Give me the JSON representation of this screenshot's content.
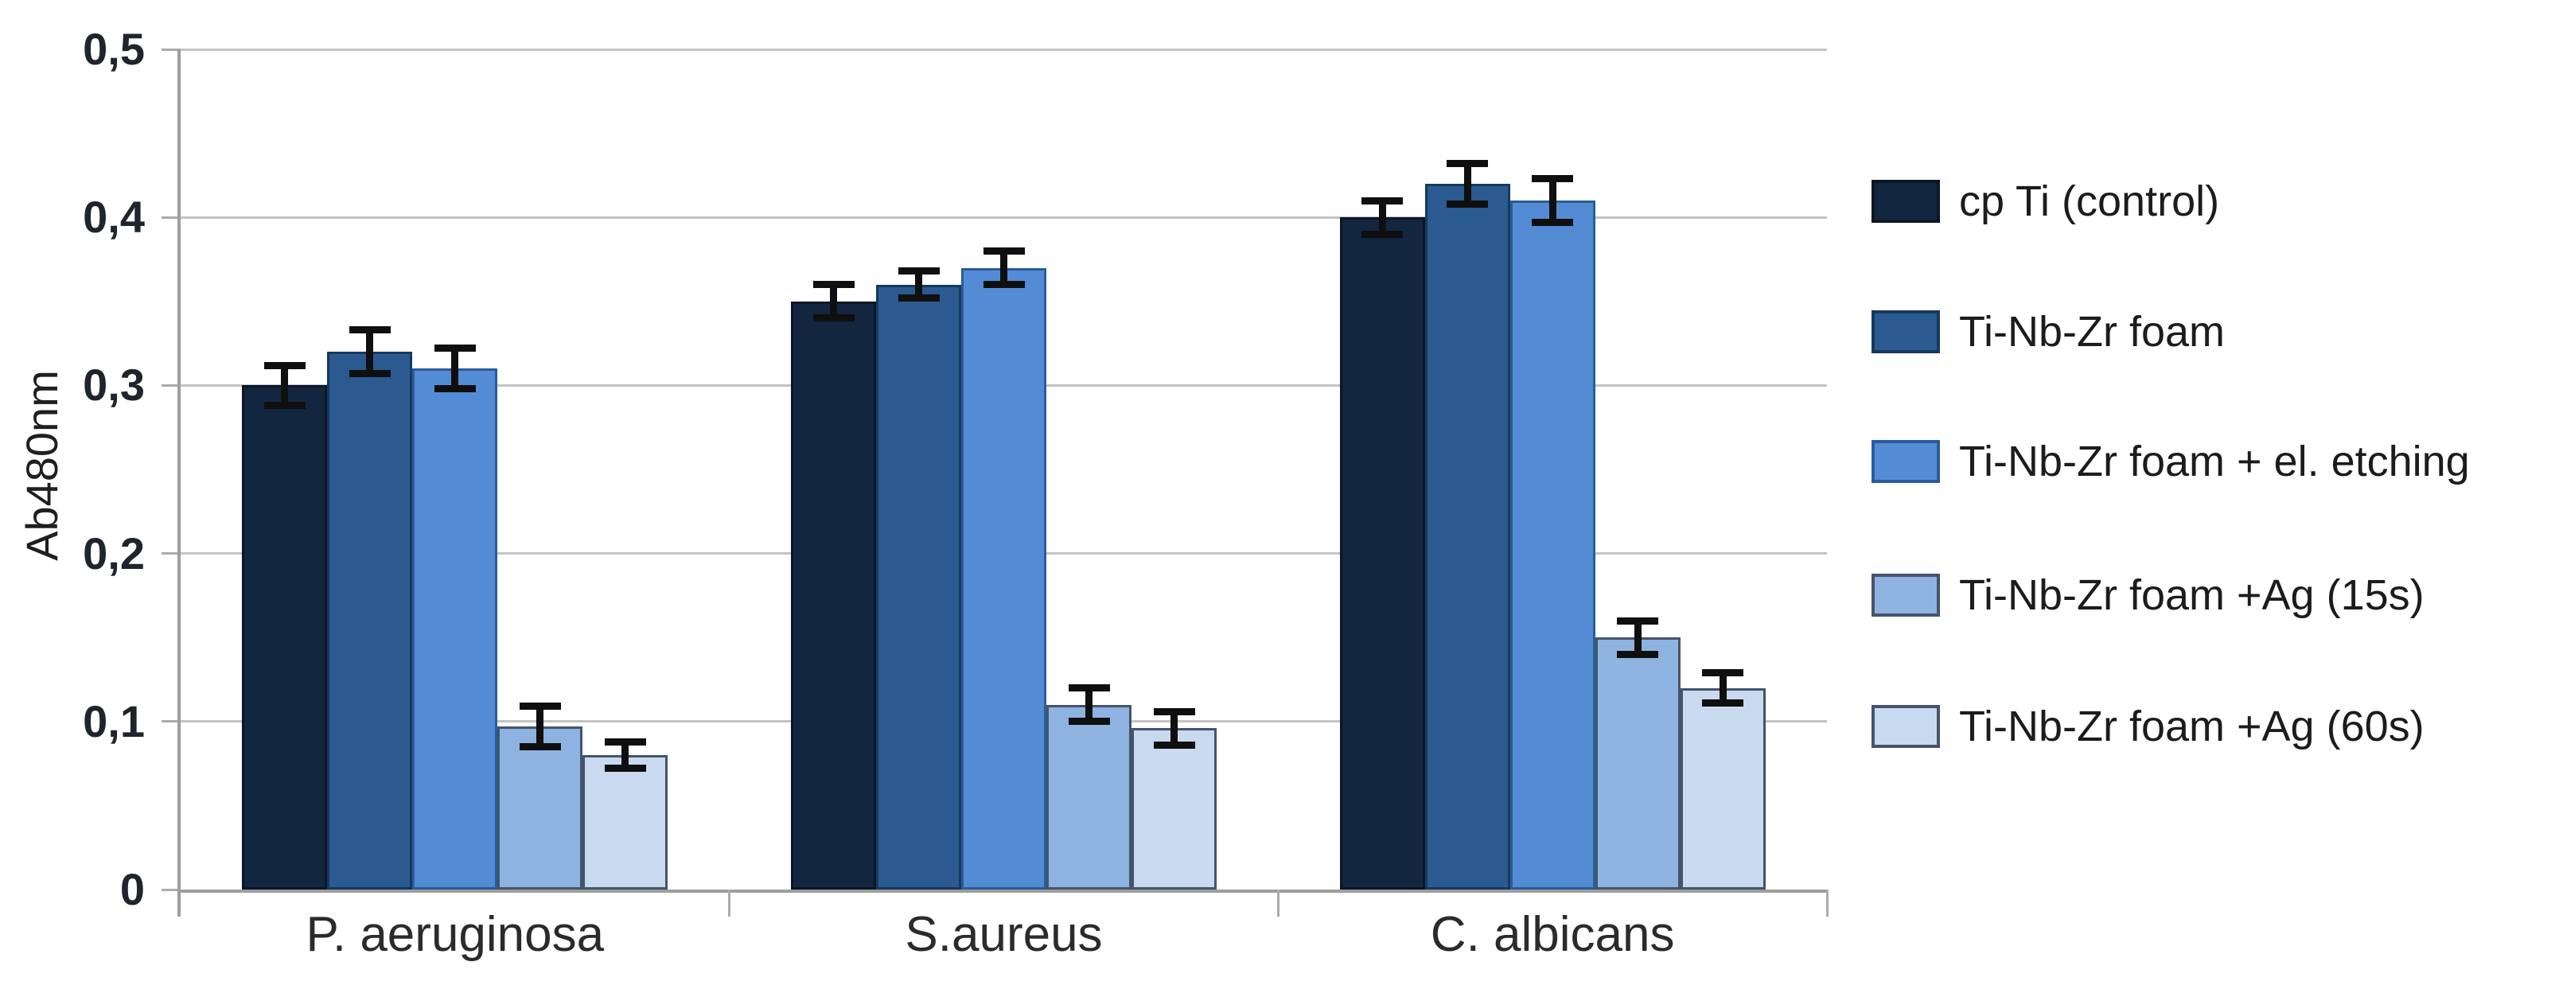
{
  "chart_data": {
    "type": "bar",
    "title": "",
    "ylabel": "Ab480nm",
    "xlabel": "",
    "categories": [
      "P. aeruginosa",
      "S.aureus",
      "C. albicans"
    ],
    "series": [
      {
        "name": "cp Ti (control)",
        "color": "#132640",
        "edge": "#0b1727",
        "values": [
          0.3,
          0.35,
          0.4
        ],
        "errors": [
          0.012,
          0.01,
          0.01
        ]
      },
      {
        "name": "Ti-Nb-Zr foam",
        "color": "#2A5A90",
        "edge": "#16395d",
        "values": [
          0.32,
          0.36,
          0.42
        ],
        "errors": [
          0.013,
          0.008,
          0.012
        ]
      },
      {
        "name": "Ti-Nb-Zr foam + el. etching",
        "color": "#538CD5",
        "edge": "#2b5c99",
        "values": [
          0.31,
          0.37,
          0.41
        ],
        "errors": [
          0.012,
          0.01,
          0.013
        ]
      },
      {
        "name": "Ti-Nb-Zr foam +Ag (15s)",
        "color": "#8FB3E1",
        "edge": "#44546a",
        "values": [
          0.097,
          0.11,
          0.15
        ],
        "errors": [
          0.012,
          0.01,
          0.01
        ]
      },
      {
        "name": "Ti-Nb-Zr foam +Ag (60s)",
        "color": "#C9D9EF",
        "edge": "#44546a",
        "values": [
          0.08,
          0.096,
          0.12
        ],
        "errors": [
          0.008,
          0.01,
          0.009
        ]
      }
    ],
    "y_ticks": [
      {
        "label": "0,5",
        "value": 0.5
      },
      {
        "label": "0,4",
        "value": 0.4
      },
      {
        "label": "0,3",
        "value": 0.3
      },
      {
        "label": "0,2",
        "value": 0.2
      },
      {
        "label": "0,1",
        "value": 0.1
      },
      {
        "label": "0",
        "value": 0
      }
    ],
    "ylim": [
      0,
      0.5
    ],
    "grid": true,
    "legend_position": "right",
    "colors": {
      "background": "#ffffff",
      "gridline": "#c4c4c4",
      "axis_line": "#9e9e9e",
      "tick_mark": "#ababab",
      "error_bar": "#0f0f0f"
    }
  }
}
